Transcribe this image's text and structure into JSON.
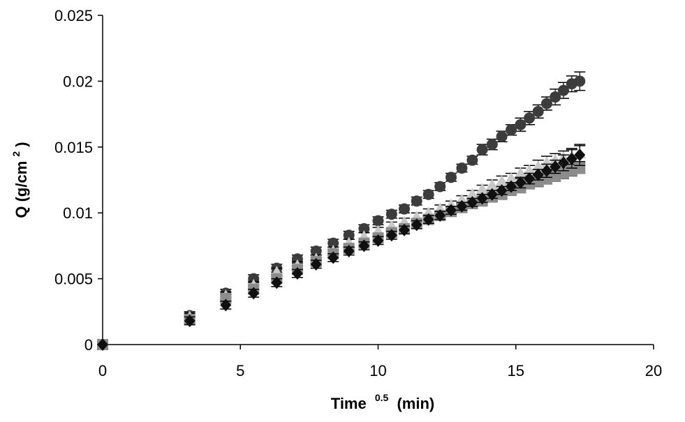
{
  "chart_data": {
    "type": "scatter",
    "title": "",
    "xlabel": {
      "main": "Time",
      "sup": "0.5",
      "unit": "(min)"
    },
    "ylabel": {
      "main": "Q (g/cm",
      "sup": "2",
      "end": ")"
    },
    "xlim": [
      0,
      20
    ],
    "ylim": [
      0,
      0.025
    ],
    "xticks": [
      0,
      5,
      10,
      15,
      20
    ],
    "xtick_labels": [
      "0",
      "5",
      "10",
      "15",
      "20"
    ],
    "yticks": [
      0,
      0.005,
      0.01,
      0.015,
      0.02,
      0.025
    ],
    "ytick_labels": [
      "0",
      "0.005",
      "0.01",
      "0.015",
      "0.02",
      "0.025"
    ],
    "grid": false,
    "legend": "none",
    "x": [
      0,
      3.16,
      4.47,
      5.48,
      6.32,
      7.07,
      7.75,
      8.37,
      8.94,
      9.49,
      10.0,
      10.49,
      10.95,
      11.4,
      11.83,
      12.25,
      12.65,
      13.04,
      13.42,
      13.78,
      14.14,
      14.49,
      14.83,
      15.17,
      15.49,
      15.81,
      16.12,
      16.43,
      16.73,
      17.03,
      17.32
    ],
    "series": [
      {
        "marker": "circle",
        "color": "#3c3c3c",
        "values": [
          0,
          0.0022,
          0.0039,
          0.005,
          0.0058,
          0.0065,
          0.0071,
          0.0077,
          0.0083,
          0.0088,
          0.0094,
          0.0099,
          0.0103,
          0.0109,
          0.0114,
          0.012,
          0.0127,
          0.0134,
          0.014,
          0.0148,
          0.0152,
          0.0158,
          0.0163,
          0.0167,
          0.0172,
          0.0177,
          0.0183,
          0.0188,
          0.0193,
          0.0198,
          0.02
        ],
        "errors": [
          0,
          0.0003,
          0.0003,
          0.0003,
          0.0003,
          0.0003,
          0.0003,
          0.0003,
          0.0003,
          0.0003,
          0.0003,
          0.0003,
          0.0003,
          0.0003,
          0.0003,
          0.0003,
          0.0003,
          0.0003,
          0.0003,
          0.0004,
          0.0004,
          0.0004,
          0.0004,
          0.0005,
          0.0005,
          0.0005,
          0.0005,
          0.0006,
          0.0006,
          0.0006,
          0.0007
        ]
      },
      {
        "marker": "triangle",
        "color": "#c8c8c8",
        "values": [
          0,
          0.0021,
          0.0037,
          0.0045,
          0.0055,
          0.006,
          0.0065,
          0.0071,
          0.0077,
          0.0082,
          0.0086,
          0.009,
          0.0093,
          0.0097,
          0.01,
          0.0103,
          0.0106,
          0.011,
          0.0114,
          0.0118,
          0.0121,
          0.0124,
          0.0126,
          0.013,
          0.0132,
          0.0135,
          0.0138,
          0.014,
          0.0142,
          0.0143,
          0.0145
        ],
        "errors": [
          0,
          0.0003,
          0.0003,
          0.0003,
          0.0003,
          0.0003,
          0.0003,
          0.0003,
          0.0003,
          0.0003,
          0.0003,
          0.0003,
          0.0003,
          0.0003,
          0.0003,
          0.0003,
          0.0003,
          0.0003,
          0.0003,
          0.0003,
          0.0004,
          0.0004,
          0.0004,
          0.0004,
          0.0004,
          0.0005,
          0.0005,
          0.0005,
          0.0005,
          0.0006,
          0.0006
        ]
      },
      {
        "marker": "square",
        "color": "#8c8c8c",
        "values": [
          0,
          0.0019,
          0.0035,
          0.0042,
          0.005,
          0.0057,
          0.0063,
          0.0069,
          0.0073,
          0.0077,
          0.0081,
          0.0085,
          0.0088,
          0.0092,
          0.0095,
          0.0098,
          0.0101,
          0.0104,
          0.0107,
          0.0109,
          0.0112,
          0.0114,
          0.0117,
          0.0119,
          0.0122,
          0.0124,
          0.0126,
          0.0128,
          0.013,
          0.0132,
          0.0134
        ],
        "errors": [
          0,
          0.0003,
          0.0003,
          0.0003,
          0.0003,
          0.0003,
          0.0003,
          0.0003,
          0.0003,
          0.0003,
          0.0003,
          0.0003,
          0.0003,
          0.0003,
          0.0003,
          0.0003,
          0.0003,
          0.0003,
          0.0003,
          0.0003,
          0.0003,
          0.0003,
          0.0003,
          0.0003,
          0.0003,
          0.0004,
          0.0004,
          0.0004,
          0.0004,
          0.0004,
          0.0004
        ]
      },
      {
        "marker": "diamond",
        "color": "#101010",
        "values": [
          0,
          0.0018,
          0.003,
          0.0039,
          0.0047,
          0.0054,
          0.0061,
          0.0066,
          0.0071,
          0.0075,
          0.0079,
          0.0083,
          0.0087,
          0.0091,
          0.0095,
          0.0098,
          0.0102,
          0.0105,
          0.0108,
          0.0111,
          0.0114,
          0.0117,
          0.012,
          0.0123,
          0.0126,
          0.0129,
          0.0132,
          0.0135,
          0.0138,
          0.0141,
          0.0144
        ],
        "errors": [
          0,
          0.0003,
          0.0003,
          0.0003,
          0.0003,
          0.0003,
          0.0003,
          0.0003,
          0.0003,
          0.0003,
          0.0003,
          0.0003,
          0.0003,
          0.0003,
          0.0003,
          0.0003,
          0.0003,
          0.0003,
          0.0003,
          0.0003,
          0.0003,
          0.0003,
          0.0003,
          0.0004,
          0.0004,
          0.0004,
          0.0005,
          0.0005,
          0.0006,
          0.0007,
          0.0008
        ]
      }
    ]
  }
}
